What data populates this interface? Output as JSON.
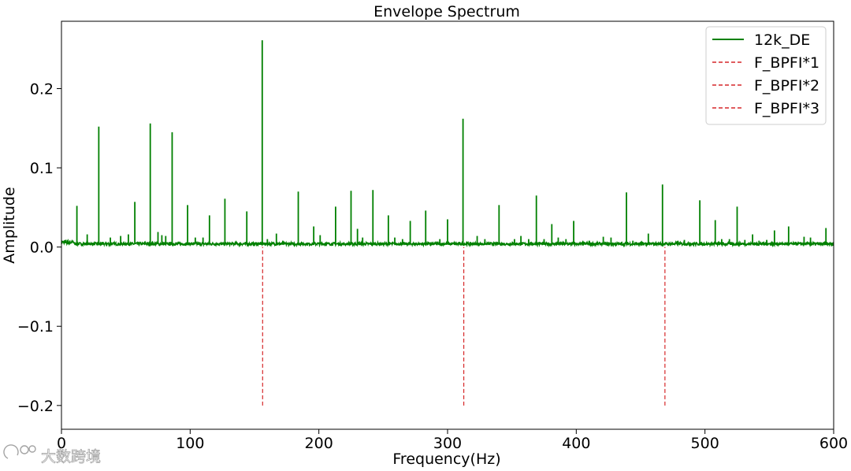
{
  "chart_data": {
    "type": "line",
    "title": "Envelope Spectrum",
    "xlabel": "Frequency(Hz)",
    "ylabel": "Amplitude",
    "xlim": [
      0,
      600
    ],
    "ylim": [
      -0.23,
      0.285
    ],
    "grid": false,
    "legend_position": "top-right",
    "x_ticks": [
      0,
      100,
      200,
      300,
      400,
      500,
      600
    ],
    "x_tick_labels": [
      "0",
      "100",
      "200",
      "300",
      "400",
      "500",
      "600"
    ],
    "y_ticks": [
      -0.2,
      -0.1,
      0.0,
      0.1,
      0.2
    ],
    "y_tick_labels": [
      "−0.2",
      "−0.1",
      "0.0",
      "0.1",
      "0.2"
    ],
    "series": [
      {
        "name": "12k_DE",
        "color": "#008000",
        "style": "solid",
        "baseline": 0.004,
        "peaks": [
          {
            "x": 12,
            "y": 0.052
          },
          {
            "x": 20,
            "y": 0.016
          },
          {
            "x": 29,
            "y": 0.152
          },
          {
            "x": 38,
            "y": 0.012
          },
          {
            "x": 46,
            "y": 0.014
          },
          {
            "x": 52,
            "y": 0.016
          },
          {
            "x": 57,
            "y": 0.057
          },
          {
            "x": 69,
            "y": 0.156
          },
          {
            "x": 75,
            "y": 0.019
          },
          {
            "x": 78,
            "y": 0.015
          },
          {
            "x": 81,
            "y": 0.014
          },
          {
            "x": 86,
            "y": 0.145
          },
          {
            "x": 98,
            "y": 0.053
          },
          {
            "x": 104,
            "y": 0.012
          },
          {
            "x": 110,
            "y": 0.012
          },
          {
            "x": 115,
            "y": 0.04
          },
          {
            "x": 127,
            "y": 0.061
          },
          {
            "x": 144,
            "y": 0.045
          },
          {
            "x": 156,
            "y": 0.261
          },
          {
            "x": 160,
            "y": 0.01
          },
          {
            "x": 167,
            "y": 0.017
          },
          {
            "x": 172,
            "y": 0.008
          },
          {
            "x": 184,
            "y": 0.07
          },
          {
            "x": 196,
            "y": 0.026
          },
          {
            "x": 201,
            "y": 0.015
          },
          {
            "x": 213,
            "y": 0.051
          },
          {
            "x": 225,
            "y": 0.071
          },
          {
            "x": 230,
            "y": 0.023
          },
          {
            "x": 234,
            "y": 0.012
          },
          {
            "x": 242,
            "y": 0.072
          },
          {
            "x": 254,
            "y": 0.04
          },
          {
            "x": 259,
            "y": 0.012
          },
          {
            "x": 265,
            "y": 0.01
          },
          {
            "x": 271,
            "y": 0.033
          },
          {
            "x": 283,
            "y": 0.046
          },
          {
            "x": 294,
            "y": 0.01
          },
          {
            "x": 300,
            "y": 0.035
          },
          {
            "x": 312,
            "y": 0.162
          },
          {
            "x": 323,
            "y": 0.014
          },
          {
            "x": 329,
            "y": 0.01
          },
          {
            "x": 340,
            "y": 0.053
          },
          {
            "x": 352,
            "y": 0.01
          },
          {
            "x": 357,
            "y": 0.014
          },
          {
            "x": 363,
            "y": 0.01
          },
          {
            "x": 369,
            "y": 0.065
          },
          {
            "x": 375,
            "y": 0.01
          },
          {
            "x": 381,
            "y": 0.029
          },
          {
            "x": 386,
            "y": 0.012
          },
          {
            "x": 392,
            "y": 0.01
          },
          {
            "x": 398,
            "y": 0.033
          },
          {
            "x": 410,
            "y": 0.008
          },
          {
            "x": 421,
            "y": 0.013
          },
          {
            "x": 427,
            "y": 0.012
          },
          {
            "x": 439,
            "y": 0.069
          },
          {
            "x": 444,
            "y": 0.008
          },
          {
            "x": 456,
            "y": 0.017
          },
          {
            "x": 467,
            "y": 0.079
          },
          {
            "x": 479,
            "y": 0.008
          },
          {
            "x": 484,
            "y": 0.009
          },
          {
            "x": 496,
            "y": 0.059
          },
          {
            "x": 508,
            "y": 0.034
          },
          {
            "x": 513,
            "y": 0.01
          },
          {
            "x": 519,
            "y": 0.01
          },
          {
            "x": 525,
            "y": 0.051
          },
          {
            "x": 531,
            "y": 0.009
          },
          {
            "x": 537,
            "y": 0.016
          },
          {
            "x": 542,
            "y": 0.008
          },
          {
            "x": 548,
            "y": 0.009
          },
          {
            "x": 554,
            "y": 0.021
          },
          {
            "x": 565,
            "y": 0.026
          },
          {
            "x": 577,
            "y": 0.013
          },
          {
            "x": 582,
            "y": 0.012
          },
          {
            "x": 594,
            "y": 0.024
          }
        ]
      },
      {
        "name": "F_BPFI*1",
        "color": "#d62728",
        "style": "dashed",
        "x": 156.3,
        "y_range": [
          -0.2,
          0.0
        ]
      },
      {
        "name": "F_BPFI*2",
        "color": "#d62728",
        "style": "dashed",
        "x": 312.6,
        "y_range": [
          -0.2,
          0.0
        ]
      },
      {
        "name": "F_BPFI*3",
        "color": "#d62728",
        "style": "dashed",
        "x": 468.9,
        "y_range": [
          -0.2,
          0.0
        ]
      }
    ]
  },
  "watermark": {
    "text": "大数跨境"
  }
}
